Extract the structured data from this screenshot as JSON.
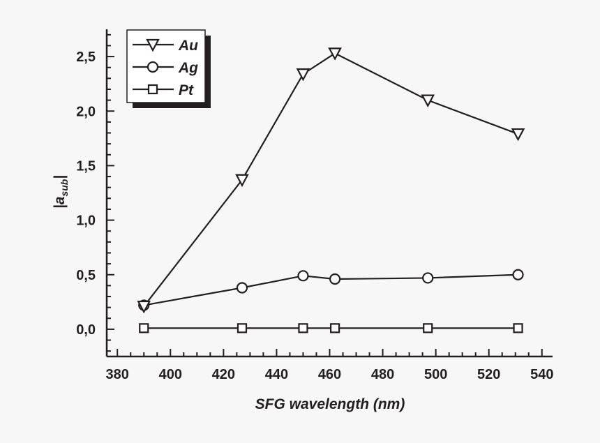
{
  "chart_data": {
    "type": "line",
    "title": "",
    "xlabel": "SFG wavelength (nm)",
    "ylabel": {
      "main": "a",
      "subscript": "sub",
      "wrapper": "|"
    },
    "xlim": [
      376,
      544
    ],
    "ylim": [
      -0.25,
      2.75
    ],
    "x_ticks": [
      380,
      400,
      420,
      440,
      460,
      480,
      500,
      520,
      540
    ],
    "x_tick_labels": [
      "380",
      "400",
      "420",
      "440",
      "460",
      "480",
      "500",
      "520",
      "540"
    ],
    "y_ticks": [
      0,
      0.5,
      1.0,
      1.5,
      2.0,
      2.5
    ],
    "y_tick_labels": [
      "0,0",
      "0,5",
      "1,0",
      "1,5",
      "2,0",
      "2,5"
    ],
    "grid": false,
    "legend_position": "top-left",
    "x": [
      390,
      427,
      450,
      462,
      497,
      531
    ],
    "series": [
      {
        "name": "Au",
        "marker": "triangle-down",
        "values": [
          0.21,
          1.37,
          2.34,
          2.53,
          2.1,
          1.79
        ]
      },
      {
        "name": "Ag",
        "marker": "circle",
        "values": [
          0.22,
          0.38,
          0.49,
          0.46,
          0.47,
          0.5
        ]
      },
      {
        "name": "Pt",
        "marker": "square",
        "values": [
          0.01,
          0.01,
          0.01,
          0.01,
          0.01,
          0.01
        ]
      }
    ],
    "colors": {
      "line": "#231f20",
      "marker_fill": "#ffffff",
      "background": "#f7f7f7"
    }
  }
}
